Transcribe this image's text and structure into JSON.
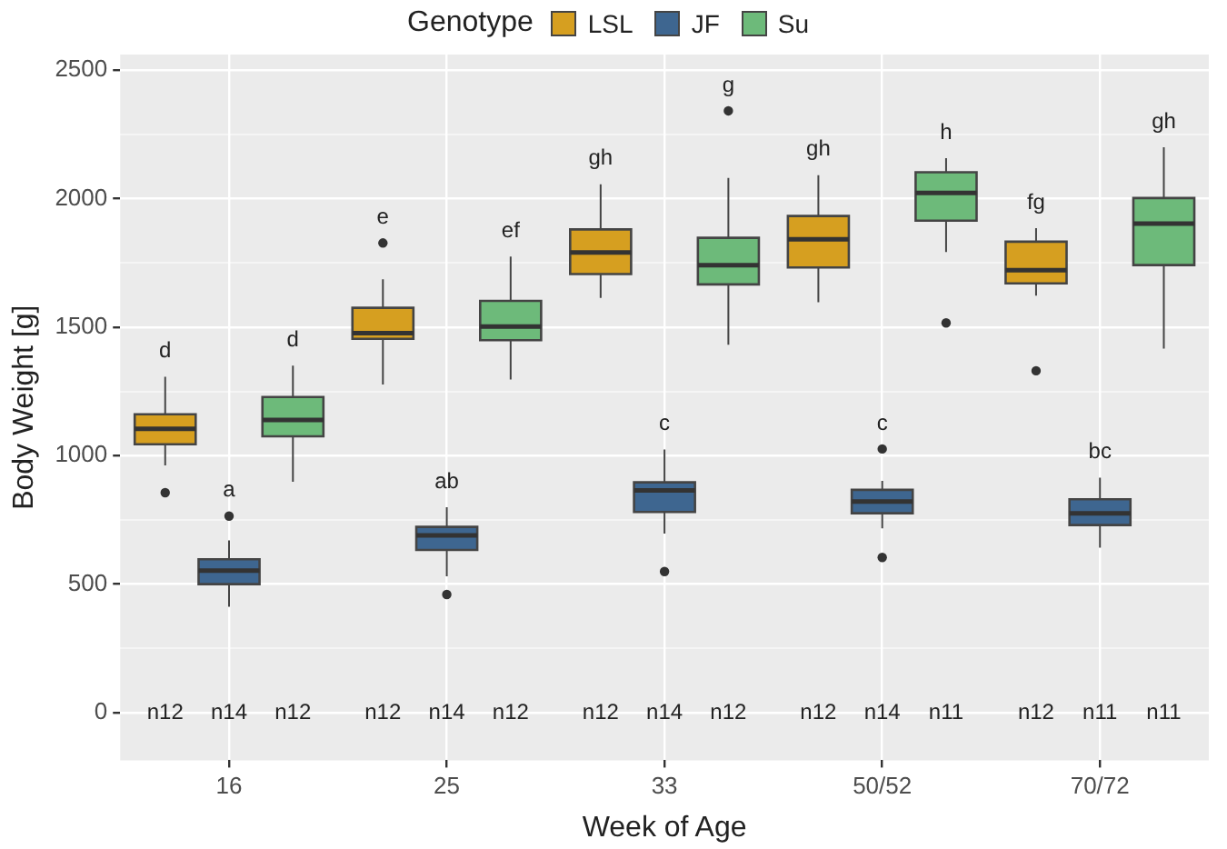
{
  "chart_data": {
    "type": "box",
    "xlabel": "Week of Age",
    "ylabel": "Body Weight [g]",
    "legend_title": "Genotype",
    "legend": "top",
    "grid": true,
    "categories": [
      "16",
      "25",
      "33",
      "50/52",
      "70/72"
    ],
    "ylim": [
      -185,
      2560
    ],
    "yticks": [
      0,
      {
        "value": 250,
        "label": null
      },
      500,
      {
        "value": 750,
        "label": null
      },
      1000,
      {
        "value": 1250,
        "label": null
      },
      1500,
      {
        "value": 1750,
        "label": null
      },
      2000,
      {
        "value": 2250,
        "label": null
      },
      2500
    ],
    "series": [
      {
        "name": "LSL",
        "color": "#d69f20",
        "boxes": [
          {
            "low": 962,
            "q1": 1044,
            "median": 1104,
            "q3": 1161,
            "high": 1307,
            "outliers": [
              856
            ]
          },
          {
            "low": 1277,
            "q1": 1454,
            "median": 1476,
            "q3": 1575,
            "high": 1686,
            "outliers": [
              1827
            ]
          },
          {
            "low": 1613,
            "q1": 1706,
            "median": 1790,
            "q3": 1880,
            "high": 2055
          },
          {
            "low": 1597,
            "q1": 1732,
            "median": 1841,
            "q3": 1932,
            "high": 2091
          },
          {
            "low": 1622,
            "q1": 1670,
            "median": 1721,
            "q3": 1832,
            "high": 1885,
            "outliers": [
              1330
            ]
          }
        ]
      },
      {
        "name": "JF",
        "color": "#3e6690",
        "boxes": [
          {
            "low": 412,
            "q1": 500,
            "median": 553,
            "q3": 597,
            "high": 670,
            "outliers": [
              765
            ]
          },
          {
            "low": 531,
            "q1": 633,
            "median": 690,
            "q3": 723,
            "high": 799,
            "outliers": [
              460
            ]
          },
          {
            "low": 697,
            "q1": 781,
            "median": 865,
            "q3": 896,
            "high": 1024,
            "outliers": [
              549
            ]
          },
          {
            "low": 717,
            "q1": 776,
            "median": 821,
            "q3": 867,
            "high": 902,
            "outliers": [
              1026,
              604
            ]
          },
          {
            "low": 642,
            "q1": 730,
            "median": 775,
            "q3": 830,
            "high": 914
          }
        ]
      },
      {
        "name": "Su",
        "color": "#6dba7a",
        "boxes": [
          {
            "low": 898,
            "q1": 1075,
            "median": 1139,
            "q3": 1228,
            "high": 1350
          },
          {
            "low": 1296,
            "q1": 1449,
            "median": 1502,
            "q3": 1602,
            "high": 1774
          },
          {
            "low": 1431,
            "q1": 1666,
            "median": 1741,
            "q3": 1847,
            "high": 2080,
            "outliers": [
              2341
            ]
          },
          {
            "low": 1792,
            "q1": 1914,
            "median": 2022,
            "q3": 2102,
            "high": 2157,
            "outliers": [
              1516
            ]
          },
          {
            "low": 1416,
            "q1": 1741,
            "median": 1902,
            "q3": 2002,
            "high": 2199
          }
        ]
      }
    ],
    "annotations": [
      "d",
      "a",
      "d",
      "e",
      "ab",
      "ef",
      "gh",
      "c",
      "g",
      "gh",
      "c",
      "h",
      "fg",
      "bc",
      "gh",
      "n12",
      "n14",
      "n12",
      "n12",
      "n14",
      "n12",
      "n12",
      "n14",
      "n12",
      "n12",
      "n14",
      "n11",
      "n12",
      "n11",
      "n11"
    ]
  }
}
